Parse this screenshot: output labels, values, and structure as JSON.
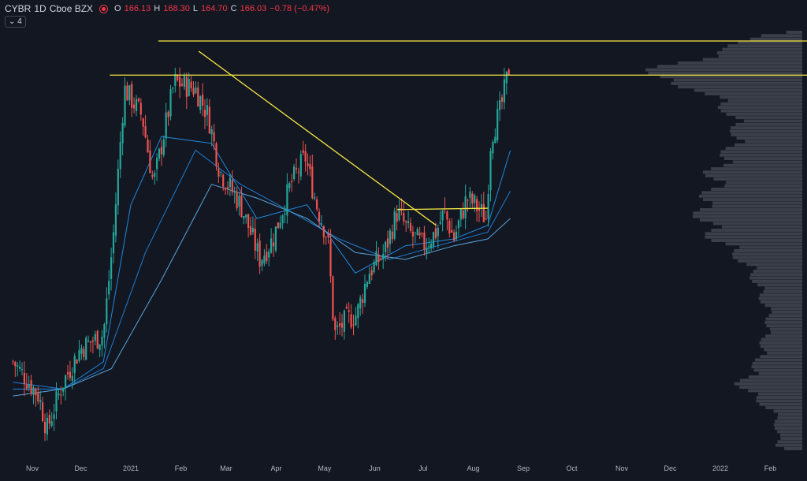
{
  "header": {
    "symbol": "CYBR",
    "interval": "1D",
    "exchange": "Cboe BZX",
    "open_label": "O",
    "open": "166.13",
    "high_label": "H",
    "high": "168.30",
    "low_label": "L",
    "low": "164.70",
    "close_label": "C",
    "close": "166.03",
    "change": "−0.78 (−0.47%)",
    "indicator_count": "4"
  },
  "colors": {
    "background": "#131722",
    "up": "#26a69a",
    "down": "#ef5350",
    "ma": "#2196f3",
    "lines": "#f5e642",
    "volume_profile": "#434651"
  },
  "chart_data": {
    "type": "candlestick",
    "ylim": [
      108,
      172
    ],
    "x_ticks": [
      "Nov",
      "Dec",
      "2021",
      "Feb",
      "Mar",
      "Apr",
      "May",
      "Jun",
      "Jul",
      "Aug",
      "Sep",
      "Oct",
      "Nov",
      "Dec",
      "2022",
      "Feb"
    ],
    "price_path": [
      {
        "date": "2020-10-20",
        "close": 122
      },
      {
        "date": "2020-10-30",
        "close": 119
      },
      {
        "date": "2020-11-05",
        "close": 117
      },
      {
        "date": "2020-11-10",
        "close": 112
      },
      {
        "date": "2020-11-20",
        "close": 119
      },
      {
        "date": "2020-12-01",
        "close": 124
      },
      {
        "date": "2020-12-15",
        "close": 126
      },
      {
        "date": "2020-12-21",
        "close": 140
      },
      {
        "date": "2020-12-28",
        "close": 162
      },
      {
        "date": "2021-01-08",
        "close": 158
      },
      {
        "date": "2021-01-15",
        "close": 148
      },
      {
        "date": "2021-01-28",
        "close": 163
      },
      {
        "date": "2021-02-10",
        "close": 162
      },
      {
        "date": "2021-02-18",
        "close": 158
      },
      {
        "date": "2021-02-25",
        "close": 150
      },
      {
        "date": "2021-03-10",
        "close": 145
      },
      {
        "date": "2021-03-22",
        "close": 137
      },
      {
        "date": "2021-03-30",
        "close": 140
      },
      {
        "date": "2021-04-10",
        "close": 148
      },
      {
        "date": "2021-04-19",
        "close": 152
      },
      {
        "date": "2021-04-26",
        "close": 145
      },
      {
        "date": "2021-05-03",
        "close": 140
      },
      {
        "date": "2021-05-07",
        "close": 126
      },
      {
        "date": "2021-05-14",
        "close": 128
      },
      {
        "date": "2021-05-21",
        "close": 129
      },
      {
        "date": "2021-05-28",
        "close": 135
      },
      {
        "date": "2021-06-07",
        "close": 138
      },
      {
        "date": "2021-06-15",
        "close": 144
      },
      {
        "date": "2021-06-22",
        "close": 141
      },
      {
        "date": "2021-07-01",
        "close": 139
      },
      {
        "date": "2021-07-09",
        "close": 141
      },
      {
        "date": "2021-07-14",
        "close": 144
      },
      {
        "date": "2021-07-20",
        "close": 140
      },
      {
        "date": "2021-07-28",
        "close": 146
      },
      {
        "date": "2021-08-02",
        "close": 145
      },
      {
        "date": "2021-08-09",
        "close": 143
      },
      {
        "date": "2021-08-12",
        "close": 155
      },
      {
        "date": "2021-08-18",
        "close": 159
      },
      {
        "date": "2021-08-24",
        "close": 166
      }
    ],
    "moving_averages": [
      {
        "name": "MA short",
        "points": [
          {
            "date": "2020-10-20",
            "value": 118
          },
          {
            "date": "2020-11-20",
            "value": 118
          },
          {
            "date": "2020-12-15",
            "value": 122
          },
          {
            "date": "2021-01-01",
            "value": 145
          },
          {
            "date": "2021-01-20",
            "value": 155
          },
          {
            "date": "2021-02-20",
            "value": 154
          },
          {
            "date": "2021-03-20",
            "value": 143
          },
          {
            "date": "2021-04-20",
            "value": 145
          },
          {
            "date": "2021-05-20",
            "value": 135
          },
          {
            "date": "2021-06-20",
            "value": 139
          },
          {
            "date": "2021-07-20",
            "value": 140
          },
          {
            "date": "2021-08-10",
            "value": 142
          },
          {
            "date": "2021-08-24",
            "value": 153
          }
        ]
      },
      {
        "name": "MA medium",
        "points": [
          {
            "date": "2020-10-20",
            "value": 119
          },
          {
            "date": "2020-11-20",
            "value": 118
          },
          {
            "date": "2020-12-15",
            "value": 121
          },
          {
            "date": "2021-01-10",
            "value": 138
          },
          {
            "date": "2021-02-10",
            "value": 153
          },
          {
            "date": "2021-03-10",
            "value": 148
          },
          {
            "date": "2021-04-10",
            "value": 144
          },
          {
            "date": "2021-05-10",
            "value": 140
          },
          {
            "date": "2021-06-10",
            "value": 137
          },
          {
            "date": "2021-07-10",
            "value": 139
          },
          {
            "date": "2021-08-10",
            "value": 141
          },
          {
            "date": "2021-08-24",
            "value": 147
          }
        ]
      },
      {
        "name": "MA long",
        "points": [
          {
            "date": "2020-10-20",
            "value": 117
          },
          {
            "date": "2020-11-20",
            "value": 118
          },
          {
            "date": "2020-12-20",
            "value": 121
          },
          {
            "date": "2021-01-20",
            "value": 134
          },
          {
            "date": "2021-02-20",
            "value": 148
          },
          {
            "date": "2021-03-20",
            "value": 146
          },
          {
            "date": "2021-04-20",
            "value": 143
          },
          {
            "date": "2021-05-20",
            "value": 138
          },
          {
            "date": "2021-06-20",
            "value": 137
          },
          {
            "date": "2021-07-20",
            "value": 139
          },
          {
            "date": "2021-08-10",
            "value": 140
          },
          {
            "date": "2021-08-24",
            "value": 143
          }
        ]
      }
    ],
    "drawings": [
      {
        "type": "horizontal",
        "price": 169,
        "start": "2021-01-18",
        "end": "2022-02-28"
      },
      {
        "type": "horizontal",
        "price": 164,
        "start": "2020-12-19",
        "end": "2022-02-28"
      },
      {
        "type": "trendline",
        "start": {
          "date": "2021-02-12",
          "price": 167.5
        },
        "end": {
          "date": "2021-07-09",
          "price": 142
        }
      },
      {
        "type": "segment",
        "start": {
          "date": "2021-06-15",
          "price": 144.3
        },
        "end": {
          "date": "2021-08-10",
          "price": 144.5
        }
      }
    ],
    "volume_profile": {
      "side": "right",
      "peak_price": 164,
      "secondary_peak_price": 118
    }
  }
}
